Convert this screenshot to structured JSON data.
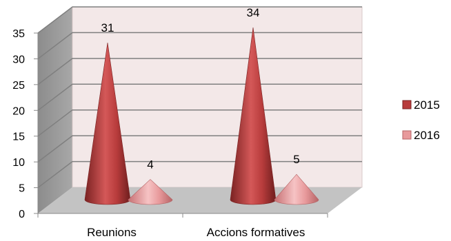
{
  "chart_data": {
    "type": "bar",
    "shape": "cone-3d",
    "categories": [
      "Reunions",
      "Accions formatives"
    ],
    "series": [
      {
        "name": "2015",
        "values": [
          31,
          34
        ],
        "color": "#b83c3c"
      },
      {
        "name": "2016",
        "values": [
          4,
          5
        ],
        "color": "#e89a9c"
      }
    ],
    "yticks": [
      "0",
      "5",
      "10",
      "15",
      "20",
      "25",
      "30",
      "35"
    ],
    "ylim": [
      0,
      35
    ],
    "grid": true,
    "legend": "right",
    "data_labels": true,
    "colors": {
      "wall": "#f3e8e8",
      "floor": "#c3c3c3",
      "side_wall": "#9a9a9a"
    }
  }
}
